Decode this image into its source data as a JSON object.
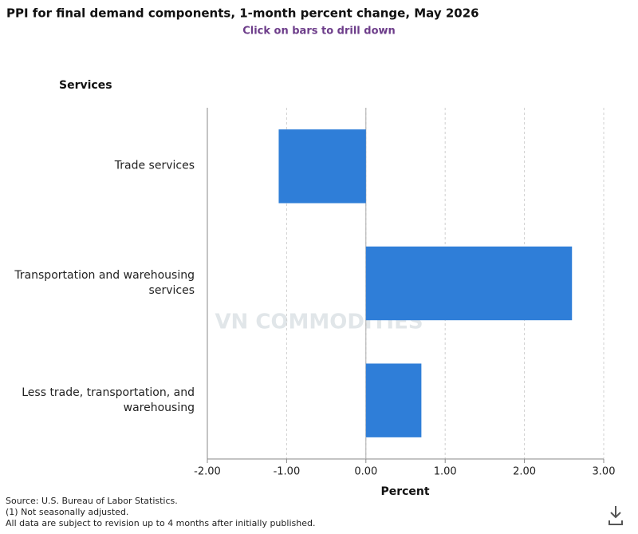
{
  "chart_data": {
    "type": "hbar",
    "title": "PPI for final demand components, 1-month percent change, May 2026",
    "subtitle": "Click on bars to drill down",
    "group_label": "Services",
    "categories": [
      "Trade services",
      "Transportation and warehousing services",
      "Less trade, transportation, and warehousing"
    ],
    "values": [
      -1.1,
      2.6,
      0.7
    ],
    "color": "#2f7ed8",
    "xlim": [
      -2,
      3
    ],
    "xticks": [
      {
        "value": -2,
        "label": "-2.00"
      },
      {
        "value": -1,
        "label": "-1.00"
      },
      {
        "value": 0,
        "label": "0.00"
      },
      {
        "value": 1,
        "label": "1.00"
      },
      {
        "value": 2,
        "label": "2.00"
      },
      {
        "value": 3,
        "label": "3.00"
      }
    ],
    "xlabel": "Percent",
    "grid": true,
    "notes": [
      "Source: U.S. Bureau of Labor Statistics.",
      "(1) Not seasonally adjusted.",
      "All data are subject to revision up to 4 months after initially published."
    ],
    "watermark": "VN COMMODITIES"
  }
}
